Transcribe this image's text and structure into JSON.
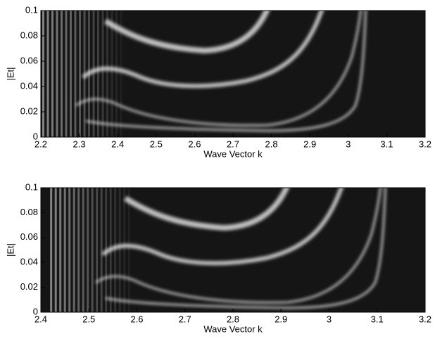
{
  "chart_data": [
    {
      "type": "heatmap",
      "xlabel": "Wave Vector k",
      "ylabel": "|Et|",
      "xlim": [
        2.2,
        3.2
      ],
      "xticks": [
        2.2,
        2.3,
        2.4,
        2.5,
        2.6,
        2.7,
        2.8,
        2.9,
        3,
        3.1,
        3.2
      ],
      "ylim": [
        0,
        0.1
      ],
      "yticks": [
        0,
        0.02,
        0.04,
        0.06,
        0.08,
        0.1
      ]
    },
    {
      "type": "heatmap",
      "xlabel": "Wave Vector k",
      "ylabel": "|Et|",
      "xlim": [
        2.4,
        3.2
      ],
      "xticks": [
        2.4,
        2.5,
        2.6,
        2.7,
        2.8,
        2.9,
        3,
        3.1,
        3.2
      ],
      "ylim": [
        0,
        0.1
      ],
      "yticks": [
        0,
        0.02,
        0.04,
        0.06,
        0.08,
        0.1
      ]
    }
  ]
}
